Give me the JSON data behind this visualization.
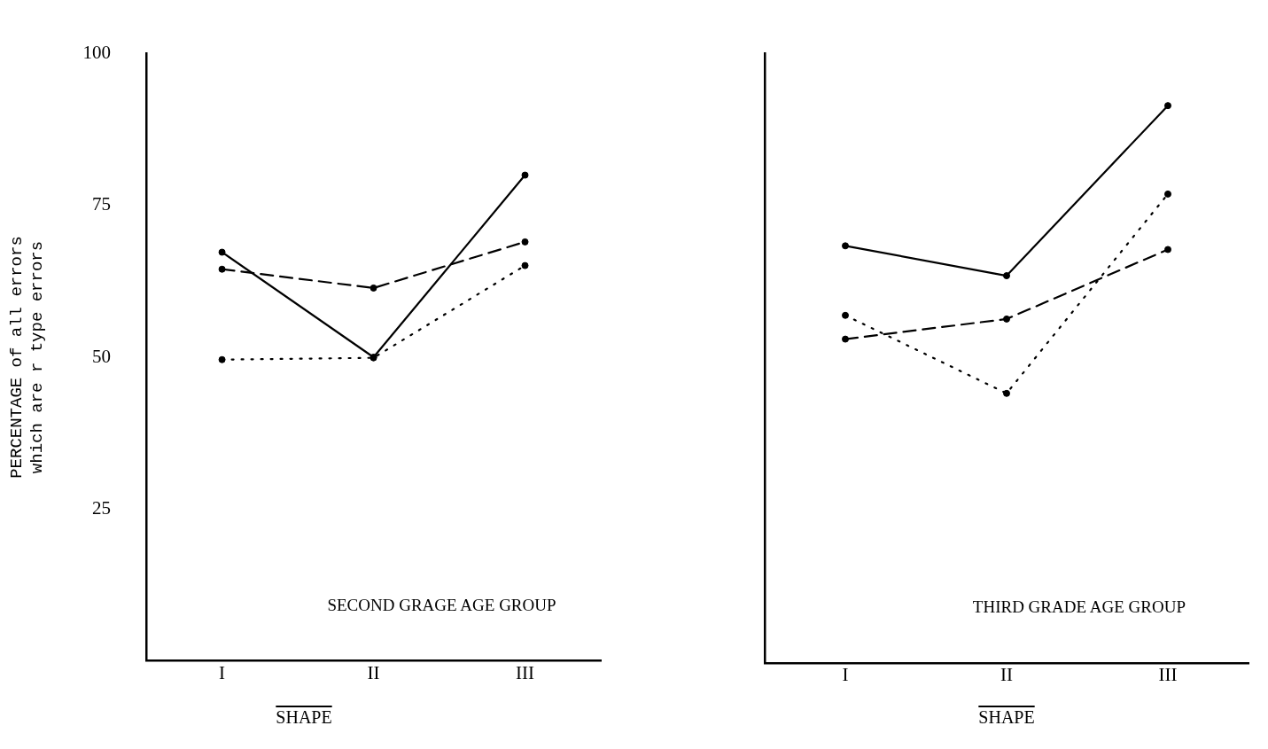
{
  "chart_data": [
    {
      "type": "line",
      "categories": [
        "I",
        "II",
        "III"
      ],
      "xlabel": "SHAPE",
      "ylabel": "PERCENTAGE of all errors\nwhich are r type errors",
      "annotations": [
        "SECOND GRAGE AGE GROUP"
      ],
      "ylim": [
        0,
        100
      ],
      "yticks": [
        25,
        50,
        75,
        100
      ],
      "marker": "circle",
      "series": [
        {
          "color": "#000000",
          "line_style": "solid",
          "values": [
            67.3,
            50,
            80
          ]
        },
        {
          "color": "#000000",
          "line_style": "dashed",
          "values": [
            64.5,
            61.4,
            69
          ]
        },
        {
          "color": "#000000",
          "line_style": "dotted",
          "values": [
            49.6,
            49.9,
            65.1
          ]
        }
      ]
    },
    {
      "type": "line",
      "categories": [
        "I",
        "II",
        "III"
      ],
      "xlabel": "SHAPE",
      "annotations": [
        "THIRD GRADE AGE GROUP"
      ],
      "ylim": [
        0,
        100
      ],
      "yticks": [
        25,
        50,
        75,
        100
      ],
      "marker": "circle",
      "tick_labels": "x",
      "series": [
        {
          "color": "#000000",
          "line_style": "solid",
          "values": [
            68.4,
            63.5,
            91.4
          ]
        },
        {
          "color": "#000000",
          "line_style": "dashed",
          "values": [
            53.1,
            56.4,
            67.8
          ]
        },
        {
          "color": "#000000",
          "line_style": "dotted",
          "values": [
            57,
            44.2,
            76.9
          ]
        }
      ]
    }
  ]
}
